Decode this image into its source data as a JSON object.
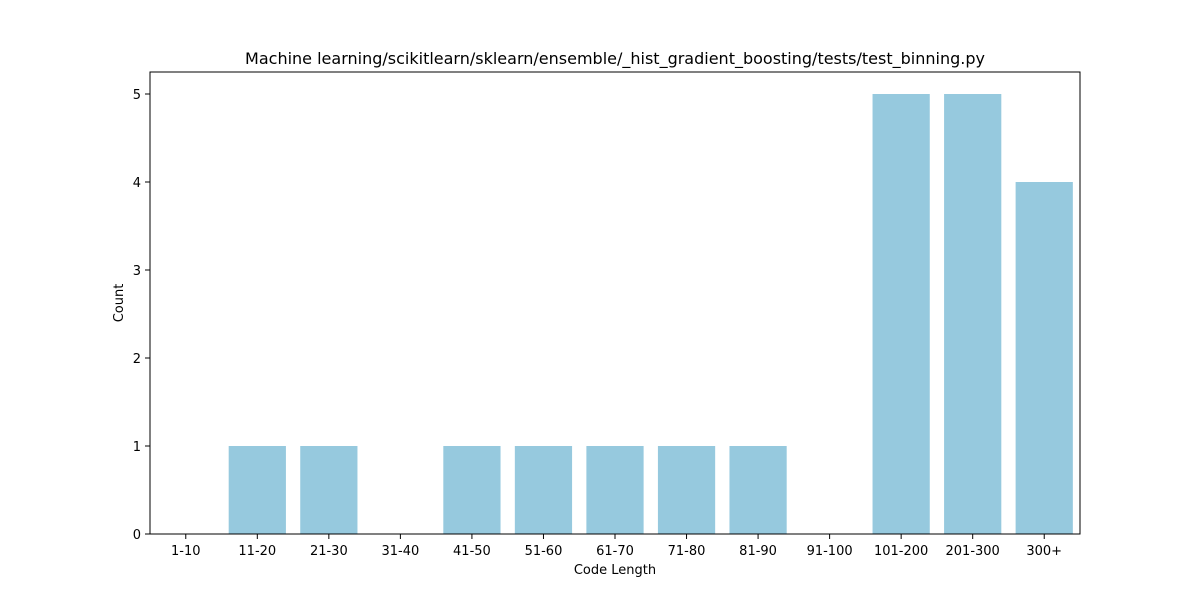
{
  "chart_data": {
    "type": "bar",
    "title": "Machine learning/scikitlearn/sklearn/ensemble/_hist_gradient_boosting/tests/test_binning.py",
    "xlabel": "Code Length",
    "ylabel": "Count",
    "categories": [
      "1-10",
      "11-20",
      "21-30",
      "31-40",
      "41-50",
      "51-60",
      "61-70",
      "71-80",
      "81-90",
      "91-100",
      "101-200",
      "201-300",
      "300+"
    ],
    "values": [
      0,
      1,
      1,
      0,
      1,
      1,
      1,
      1,
      1,
      0,
      5,
      5,
      4
    ],
    "ylim": [
      0,
      5.25
    ],
    "yticks": [
      0,
      1,
      2,
      3,
      4,
      5
    ],
    "bar_color": "#96c9de",
    "grid": false,
    "legend": "none"
  }
}
